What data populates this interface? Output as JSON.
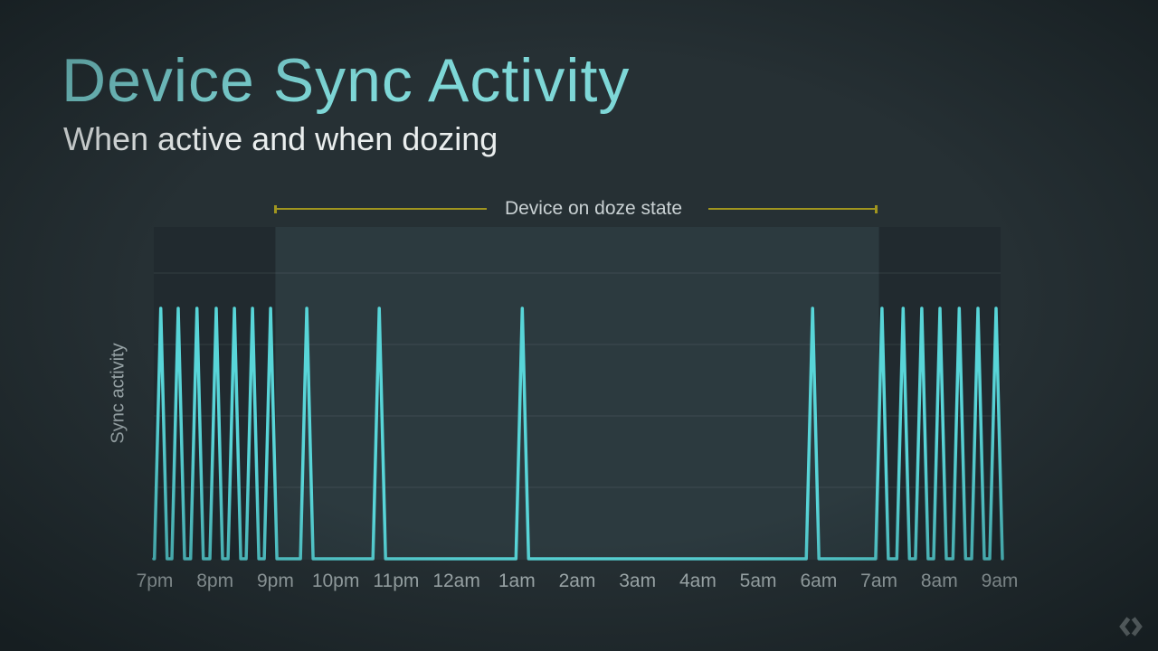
{
  "slide": {
    "title": "Device Sync Activity",
    "subtitle": "When active and when dozing",
    "background_color": "#263034",
    "title_color": "#7ed7d7"
  },
  "annotation": {
    "label": "Device on doze state",
    "line_color": "#a0951f"
  },
  "chart_data": {
    "type": "line",
    "title": "",
    "xlabel": "",
    "ylabel": "Sync activity",
    "x_tick_labels": [
      "7pm",
      "8pm",
      "9pm",
      "10pm",
      "11pm",
      "12am",
      "1am",
      "2am",
      "3am",
      "4am",
      "5am",
      "6am",
      "7am",
      "8am",
      "9am"
    ],
    "hours_span": 14,
    "grid": true,
    "line_color": "#58d5d8",
    "spike_height": 1,
    "spikes_hours_from_7pm": [
      0.1,
      0.39,
      0.7,
      1.02,
      1.32,
      1.62,
      1.92,
      2.52,
      3.72,
      6.09,
      10.9,
      12.05,
      12.4,
      12.71,
      13.01,
      13.33,
      13.64,
      13.94
    ],
    "regions": {
      "doze_start_hour": 2,
      "doze_end_hour": 12,
      "active_band_color": "#212a2f",
      "doze_band_color": "#2c3a3f"
    }
  },
  "footer": {
    "logo_icon": "google-developers-logo",
    "logo_color": "#8b9597"
  }
}
